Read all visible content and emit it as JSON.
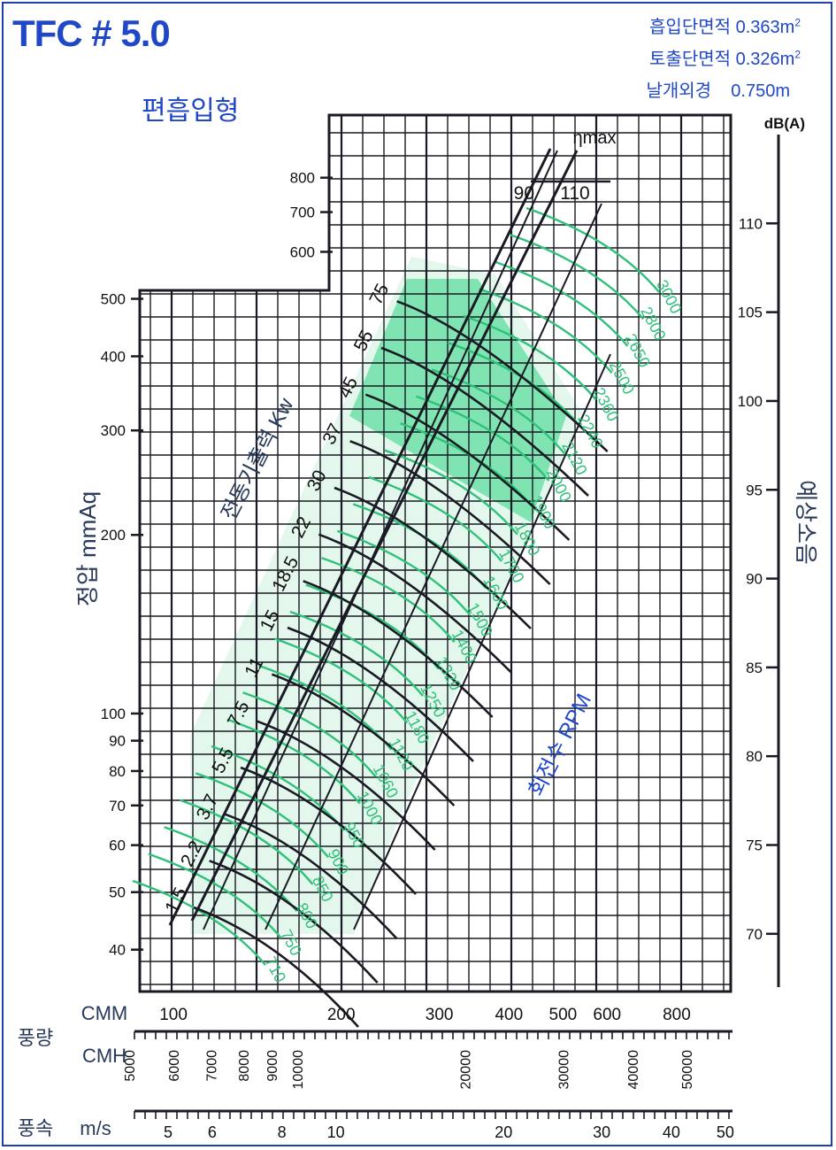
{
  "header": {
    "title": "TFC # 5.0",
    "subtitle": "편흡입형",
    "specs": [
      {
        "label": "흡입단면적",
        "value": "0.363m",
        "sup": "2"
      },
      {
        "label": "토출단면적",
        "value": "0.326m",
        "sup": "2"
      },
      {
        "label": "날개외경",
        "value": "0.750m",
        "sup": ""
      }
    ]
  },
  "chart_data": {
    "type": "line",
    "title": "TFC # 5.0",
    "ylabel": "정압 mmAq",
    "y2label": "예상소음",
    "y2unit": "dB(A)",
    "xlabel_flow": "풍량",
    "xlabel_velocity": "풍속",
    "power_label": "전동기출력 Kw",
    "rpm_label": "회전수 RPM",
    "eta_label": "ηmax",
    "x_scale": "log",
    "y_scale": "log",
    "xlim_cmm": [
      87,
      1000
    ],
    "ylim_mmaq": [
      34,
      1020
    ],
    "cmm_unit": "CMM",
    "cmh_unit": "CMH",
    "ms_unit": "m/s",
    "cmm_ticks": [
      100,
      200,
      300,
      400,
      500,
      600,
      800
    ],
    "cmh_ticks": [
      5000,
      6000,
      7000,
      8000,
      9000,
      10000,
      20000,
      30000,
      40000,
      50000
    ],
    "velocity_ticks": [
      5,
      6,
      8,
      10,
      20,
      30,
      40,
      50
    ],
    "y_ticks": [
      40,
      50,
      60,
      70,
      80,
      90,
      100,
      200,
      300,
      400,
      500,
      600,
      700,
      800
    ],
    "db_ticks": [
      70,
      75,
      80,
      85,
      90,
      95,
      100,
      105,
      110
    ],
    "db_lim": [
      67,
      115
    ],
    "power_lines": [
      "1.5",
      "2.2",
      "3.7",
      "5.5",
      "7.5",
      "11",
      "15",
      "18.5",
      "22",
      "30",
      "37",
      "45",
      "55",
      "75",
      "90",
      "110"
    ],
    "rpm_curves": [
      "710",
      "750",
      "800",
      "850",
      "900",
      "950",
      "1000",
      "1060",
      "1120",
      "1180",
      "1250",
      "1320",
      "1400",
      "1500",
      "1600",
      "1700",
      "1800",
      "1900",
      "2000",
      "2120",
      "2240",
      "2360",
      "2500",
      "2650",
      "2800",
      "3000"
    ],
    "colors": {
      "frame": "#1f3fb0",
      "text_blue": "#1f47c8",
      "rpm_green": "#2fc07a",
      "fill_dark": "#6fe0a8",
      "fill_light": "#e3f7ec",
      "ink": "#1a1a24"
    }
  }
}
